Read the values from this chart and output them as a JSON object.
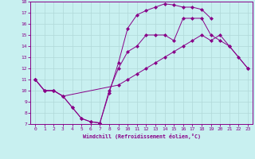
{
  "background_color": "#c8f0f0",
  "grid_color": "#b0d8d8",
  "line_color": "#880088",
  "xlabel": "Windchill (Refroidissement éolien,°C)",
  "xlim": [
    -0.5,
    23.5
  ],
  "ylim": [
    7,
    18
  ],
  "xticks": [
    0,
    1,
    2,
    3,
    4,
    5,
    6,
    7,
    8,
    9,
    10,
    11,
    12,
    13,
    14,
    15,
    16,
    17,
    18,
    19,
    20,
    21,
    22,
    23
  ],
  "yticks": [
    7,
    8,
    9,
    10,
    11,
    12,
    13,
    14,
    15,
    16,
    17,
    18
  ],
  "line1_x": [
    0,
    1,
    2,
    3,
    4,
    5,
    6,
    7,
    8,
    9,
    10,
    11,
    12,
    13,
    14,
    15,
    16,
    17,
    18,
    19,
    20,
    21,
    22,
    23
  ],
  "line1_y": [
    11,
    10,
    10,
    9.5,
    8.5,
    7.5,
    7.2,
    7.1,
    10,
    12.0,
    13.5,
    14.0,
    15.0,
    15.0,
    15.0,
    14.5,
    16.5,
    16.5,
    16.5,
    15.0,
    14.5,
    14.0,
    13.0,
    12.0
  ],
  "line2_x": [
    0,
    1,
    2,
    3,
    4,
    5,
    6,
    7,
    8,
    9,
    10,
    11,
    12,
    13,
    14,
    15,
    16,
    17,
    18,
    19
  ],
  "line2_y": [
    11,
    10,
    10,
    9.5,
    8.5,
    7.5,
    7.2,
    7.1,
    9.8,
    12.5,
    15.6,
    16.8,
    17.2,
    17.5,
    17.8,
    17.7,
    17.5,
    17.5,
    17.3,
    16.5
  ],
  "line3_x": [
    0,
    1,
    2,
    3,
    9,
    10,
    11,
    12,
    13,
    14,
    15,
    16,
    17,
    18,
    19,
    20,
    21,
    23
  ],
  "line3_y": [
    11,
    10,
    10,
    9.5,
    10.5,
    11.0,
    11.5,
    12.0,
    12.5,
    13.0,
    13.5,
    14.0,
    14.5,
    15.0,
    14.5,
    15.0,
    14.0,
    12.0
  ]
}
